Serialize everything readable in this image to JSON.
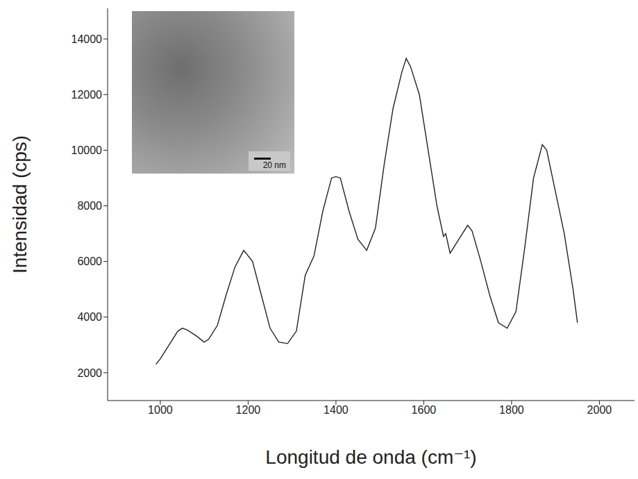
{
  "chart_data": {
    "type": "line",
    "x_label": "Longitud de onda (cm⁻¹)",
    "y_label": "Intensidad (cps)",
    "annotations": [
      "20 nm"
    ],
    "x": [
      990,
      1000,
      1020,
      1040,
      1050,
      1060,
      1080,
      1100,
      1110,
      1130,
      1150,
      1170,
      1190,
      1210,
      1230,
      1250,
      1270,
      1290,
      1310,
      1330,
      1350,
      1370,
      1390,
      1400,
      1410,
      1430,
      1450,
      1470,
      1490,
      1510,
      1530,
      1550,
      1560,
      1570,
      1590,
      1610,
      1630,
      1645,
      1650,
      1660,
      1680,
      1700,
      1710,
      1730,
      1750,
      1770,
      1790,
      1810,
      1830,
      1850,
      1870,
      1880,
      1900,
      1920,
      1940,
      1950
    ],
    "values": [
      2300,
      2500,
      3000,
      3500,
      3600,
      3550,
      3350,
      3100,
      3200,
      3700,
      4800,
      5800,
      6400,
      6000,
      4800,
      3600,
      3100,
      3050,
      3500,
      5500,
      6200,
      7800,
      9000,
      9050,
      9000,
      7800,
      6800,
      6400,
      7200,
      9500,
      11500,
      12800,
      13300,
      13000,
      12000,
      10000,
      8000,
      6900,
      7000,
      6300,
      6800,
      7300,
      7100,
      6000,
      4800,
      3800,
      3600,
      4200,
      6500,
      9000,
      10200,
      10000,
      8500,
      7000,
      5000,
      3800
    ],
    "color": "#222222",
    "xlim": [
      880,
      2080
    ],
    "ylim": [
      1000,
      15100
    ],
    "xticks": [
      1000,
      1200,
      1400,
      1600,
      1800,
      2000
    ],
    "yticks": [
      2000,
      4000,
      6000,
      8000,
      10000,
      12000,
      14000
    ],
    "grid": false
  }
}
